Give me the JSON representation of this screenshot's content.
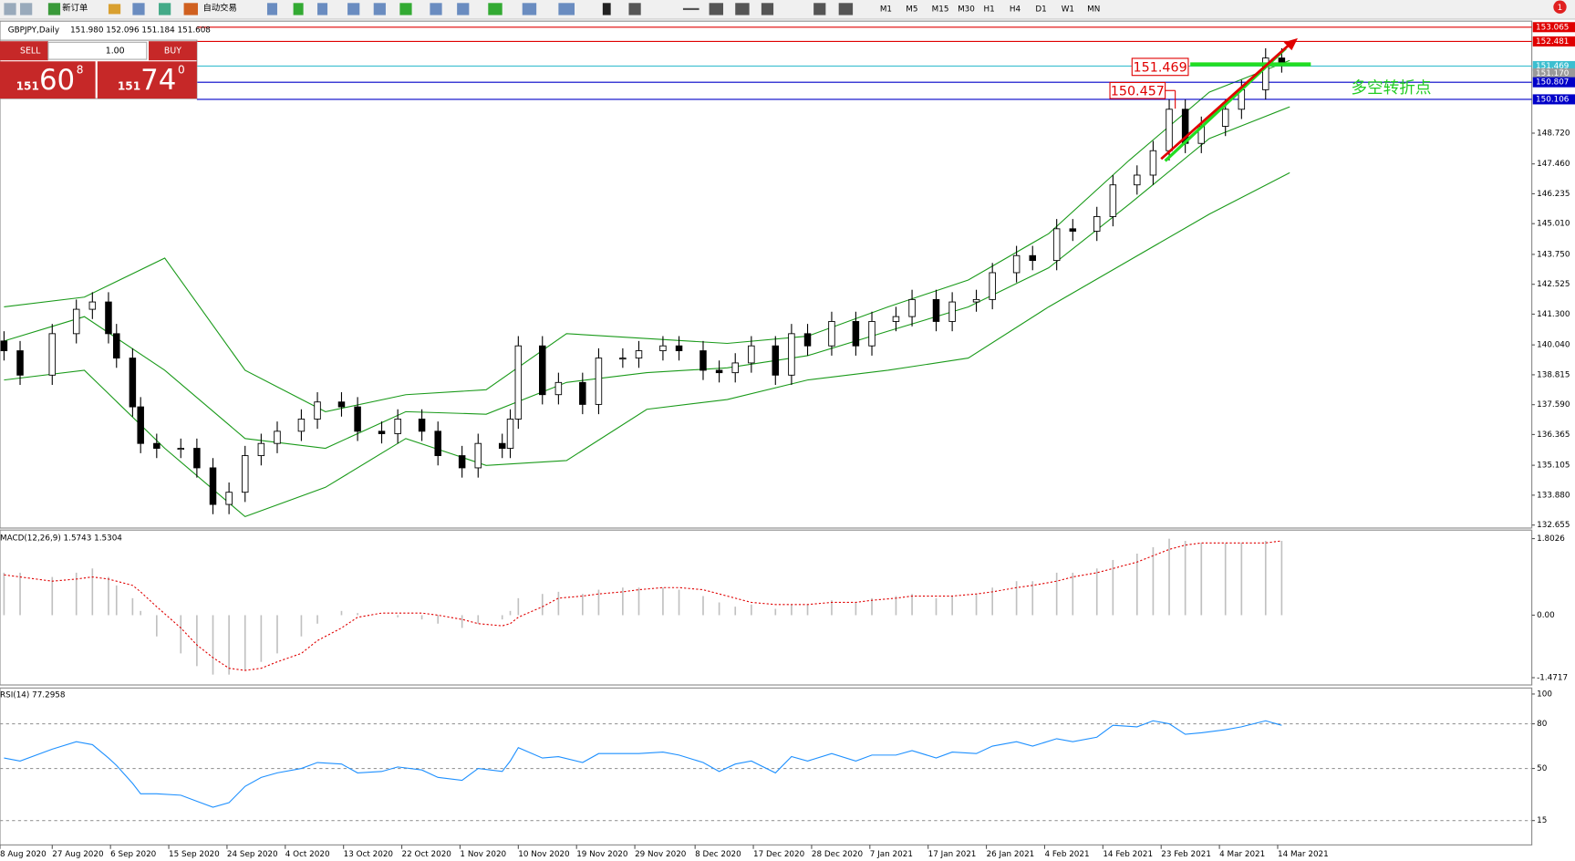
{
  "toolbar": {
    "buttons": [
      "新订单",
      "自动交易"
    ],
    "timeframes": [
      "M1",
      "M5",
      "M15",
      "M30",
      "H1",
      "H4",
      "D1",
      "W1",
      "MN"
    ],
    "badge": "1"
  },
  "trade_panel": {
    "sell": "SELL",
    "buy": "BUY",
    "lot": "1.00",
    "sell_price": {
      "prefix": "151",
      "big": "60",
      "sup": "8"
    },
    "buy_price": {
      "prefix": "151",
      "big": "74",
      "sup": "0"
    }
  },
  "chart_data": [
    {
      "type": "candlestick",
      "title": "GBPJPY,Daily",
      "ohlc_label": "151.980 152.096 151.184 151.608",
      "x": [
        0,
        2,
        6,
        9,
        11,
        13,
        14,
        16,
        17,
        19,
        22,
        24,
        26,
        28,
        30,
        32,
        34,
        37,
        39,
        42,
        44,
        47,
        49,
        52,
        54,
        57,
        59,
        62,
        63,
        64,
        67,
        69,
        72,
        74,
        77,
        79,
        82,
        84,
        87,
        89,
        91,
        93,
        96,
        98,
        100,
        103,
        106,
        108,
        111,
        113,
        116,
        118,
        121,
        123,
        126,
        128,
        131,
        133,
        136,
        138,
        141,
        143,
        145,
        147,
        149,
        152,
        154,
        157,
        159
      ],
      "open": [
        140.2,
        139.8,
        138.8,
        140.5,
        141.5,
        141.8,
        140.5,
        139.5,
        137.5,
        136,
        135.8,
        135.8,
        135,
        133.5,
        134,
        135.5,
        136,
        136.5,
        137,
        137.7,
        137.5,
        136.5,
        136.4,
        137,
        136.5,
        135.5,
        135,
        136,
        135.8,
        137,
        140,
        138,
        138.5,
        137.6,
        139.5,
        139.5,
        139.8,
        140,
        139.8,
        139,
        138.9,
        139.3,
        140,
        138.8,
        140.5,
        140,
        141,
        140,
        141,
        141.2,
        141.9,
        141,
        141.8,
        141.9,
        143,
        143.7,
        143.5,
        144.8,
        144.7,
        145.3,
        146.6,
        147,
        148,
        149.7,
        148.3,
        149,
        149.7,
        150.5,
        151.8
      ],
      "high": [
        140.6,
        140.2,
        140.9,
        141.9,
        142.2,
        142.2,
        140.9,
        139.9,
        137.9,
        136.4,
        136.2,
        136.2,
        135.4,
        134.4,
        135.9,
        136.4,
        136.9,
        137.4,
        138.1,
        138.1,
        137.9,
        136.9,
        137.4,
        137.4,
        136.9,
        135.9,
        136.4,
        136.4,
        137.4,
        140.4,
        140.4,
        138.9,
        138.9,
        139.9,
        139.9,
        140.2,
        140.4,
        140.4,
        140.2,
        139.4,
        139.7,
        140.4,
        140.4,
        140.9,
        140.9,
        141.4,
        141.4,
        141.4,
        141.6,
        142.3,
        142.3,
        142.2,
        142.3,
        143.4,
        144.1,
        144.1,
        145.2,
        145.2,
        145.7,
        147,
        147.4,
        148.4,
        150.1,
        150.1,
        149.4,
        150.1,
        150.9,
        152.2,
        152.2
      ],
      "low": [
        139.4,
        138.4,
        138.4,
        140.1,
        141.1,
        140.1,
        139.1,
        137.1,
        135.6,
        135.4,
        135.4,
        134.6,
        133.1,
        133.1,
        133.6,
        135.1,
        135.6,
        136.1,
        136.6,
        137.1,
        136.1,
        136,
        136,
        136.1,
        135.1,
        134.6,
        134.6,
        135.4,
        135.4,
        136.6,
        137.6,
        137.6,
        137.2,
        137.2,
        139.1,
        139.1,
        139.4,
        139.4,
        138.6,
        138.5,
        138.5,
        138.9,
        138.4,
        138.4,
        139.6,
        139.6,
        139.6,
        139.6,
        140.6,
        140.8,
        140.6,
        140.6,
        141.4,
        141.5,
        142.6,
        143.1,
        143.1,
        144.3,
        144.3,
        144.9,
        146.2,
        146.6,
        147.6,
        147.9,
        147.9,
        148.6,
        149.3,
        150.1,
        151.2
      ],
      "close": [
        139.8,
        138.8,
        140.5,
        141.5,
        141.8,
        140.5,
        139.5,
        137.5,
        136,
        135.8,
        135.8,
        135,
        133.5,
        134,
        135.5,
        136,
        136.5,
        137,
        137.7,
        137.5,
        136.5,
        136.4,
        137,
        136.5,
        135.5,
        135,
        136,
        135.8,
        137,
        140,
        138,
        138.5,
        137.6,
        139.5,
        139.5,
        139.8,
        140,
        139.8,
        139,
        138.9,
        139.3,
        140,
        138.8,
        140.5,
        140,
        141,
        140,
        141,
        141.2,
        141.9,
        141,
        141.8,
        141.9,
        143,
        143.7,
        143.5,
        144.8,
        144.7,
        145.3,
        146.6,
        147,
        148,
        149.7,
        148.3,
        149,
        149.7,
        150.5,
        151.8,
        151.6
      ],
      "bands": {
        "color": "#1a9a1a",
        "x": [
          0,
          10,
          20,
          30,
          40,
          50,
          60,
          70,
          80,
          90,
          100,
          110,
          120,
          130,
          140,
          150,
          160
        ],
        "upper": [
          141.6,
          142,
          143.6,
          139,
          137.3,
          138,
          138.2,
          140.5,
          140.3,
          140.1,
          140.4,
          141.6,
          142.7,
          144.6,
          147.6,
          150.4,
          151.7
        ],
        "middle": [
          140.2,
          141.2,
          139,
          136.2,
          135.8,
          137.3,
          137.2,
          138.5,
          138.9,
          139.1,
          139.6,
          140.6,
          141.6,
          143.2,
          145.8,
          148.5,
          149.8
        ],
        "lower": [
          138.6,
          139,
          135.8,
          133,
          134.2,
          136.2,
          135.1,
          135.3,
          137.4,
          137.8,
          138.6,
          139,
          139.5,
          141.6,
          143.5,
          145.4,
          147.1
        ]
      },
      "xlim": [
        -0.5,
        190.125
      ],
      "ylim": [
        132.655,
        153.065
      ],
      "xticks": [
        {
          "value": -0.5,
          "label": "8 Aug 2020"
        },
        {
          "value": 6,
          "label": "27 Aug 2020"
        },
        {
          "value": 13.25,
          "label": "6 Sep 2020"
        },
        {
          "value": 20.5,
          "label": "15 Sep 2020"
        },
        {
          "value": 27.75,
          "label": "24 Sep 2020"
        },
        {
          "value": 35,
          "label": "4 Oct 2020"
        },
        {
          "value": 42.25,
          "label": "13 Oct 2020"
        },
        {
          "value": 49.5,
          "label": "22 Oct 2020"
        },
        {
          "value": 56.75,
          "label": "1 Nov 2020"
        },
        {
          "value": 64,
          "label": "10 Nov 2020"
        },
        {
          "value": 71.25,
          "label": "19 Nov 2020"
        },
        {
          "value": 78.5,
          "label": "29 Nov 2020"
        },
        {
          "value": 86,
          "label": "8 Dec 2020"
        },
        {
          "value": 93.25,
          "label": "17 Dec 2020"
        },
        {
          "value": 100.5,
          "label": "28 Dec 2020"
        },
        {
          "value": 107.75,
          "label": "7 Jan 2021"
        },
        {
          "value": 115,
          "label": "17 Jan 2021"
        },
        {
          "value": 122.25,
          "label": "26 Jan 2021"
        },
        {
          "value": 129.5,
          "label": "4 Feb 2021"
        },
        {
          "value": 136.75,
          "label": "14 Feb 2021"
        },
        {
          "value": 144,
          "label": "23 Feb 2021"
        },
        {
          "value": 151.25,
          "label": "4 Mar 2021"
        },
        {
          "value": 158.5,
          "label": "14 Mar 2021"
        }
      ],
      "yticks": [
        {
          "value": 148.72,
          "label": "148.720"
        },
        {
          "value": 147.46,
          "label": "147.460"
        },
        {
          "value": 146.235,
          "label": "146.235"
        },
        {
          "value": 145.01,
          "label": "145.010"
        },
        {
          "value": 143.75,
          "label": "143.750"
        },
        {
          "value": 142.525,
          "label": "142.525"
        },
        {
          "value": 141.3,
          "label": "141.300"
        },
        {
          "value": 140.04,
          "label": "140.040"
        },
        {
          "value": 138.815,
          "label": "138.815"
        },
        {
          "value": 137.59,
          "label": "137.590"
        },
        {
          "value": 136.365,
          "label": "136.365"
        },
        {
          "value": 135.105,
          "label": "135.105"
        },
        {
          "value": 133.88,
          "label": "133.880"
        },
        {
          "value": 132.655,
          "label": "132.655"
        }
      ],
      "levels": [
        {
          "value": 153.065,
          "label": "153.065",
          "color": "#e00000",
          "line": true
        },
        {
          "value": 152.481,
          "label": "152.481",
          "color": "#e00000",
          "line": true
        },
        {
          "value": 151.469,
          "label": "151.469",
          "color": "#3cbfd0",
          "line": true
        },
        {
          "value": 151.17,
          "label": "151.170",
          "color": "#9a9a9a",
          "line": false
        },
        {
          "value": 150.807,
          "label": "150.807",
          "color": "#0000c8",
          "line": true
        },
        {
          "value": 150.106,
          "label": "150.106",
          "color": "#0000c8",
          "line": true
        }
      ],
      "annotations": [
        {
          "text": "151.469",
          "color": "#e00000"
        },
        {
          "text": "150.457",
          "color": "#e00000"
        },
        {
          "text": "多空转折点",
          "color": "#22cc22"
        }
      ]
    },
    {
      "type": "macd",
      "title": "MACD(12,26,9) 1.5743 1.5304",
      "x": [
        0,
        2,
        6,
        9,
        11,
        13,
        14,
        16,
        17,
        19,
        22,
        24,
        26,
        28,
        30,
        32,
        34,
        37,
        39,
        42,
        44,
        47,
        49,
        52,
        54,
        57,
        59,
        62,
        63,
        64,
        67,
        69,
        72,
        74,
        77,
        79,
        82,
        84,
        87,
        89,
        91,
        93,
        96,
        98,
        100,
        103,
        106,
        108,
        111,
        113,
        116,
        118,
        121,
        123,
        126,
        128,
        131,
        133,
        136,
        138,
        141,
        143,
        145,
        147,
        149,
        152,
        154,
        157,
        159
      ],
      "histogram": [
        1,
        1,
        0.9,
        1,
        1.1,
        0.9,
        0.7,
        0.4,
        0.1,
        -0.5,
        -0.9,
        -1.2,
        -1.4,
        -1.4,
        -1.3,
        -1.1,
        -0.9,
        -0.5,
        -0.2,
        0.1,
        0.05,
        0,
        -0.05,
        -0.1,
        -0.2,
        -0.3,
        -0.2,
        -0.1,
        0.1,
        0.4,
        0.5,
        0.55,
        0.5,
        0.6,
        0.65,
        0.65,
        0.65,
        0.6,
        0.45,
        0.3,
        0.2,
        0.25,
        0.15,
        0.25,
        0.25,
        0.35,
        0.3,
        0.4,
        0.45,
        0.5,
        0.4,
        0.45,
        0.5,
        0.65,
        0.8,
        0.8,
        1,
        1,
        1.1,
        1.3,
        1.45,
        1.6,
        1.8,
        1.75,
        1.7,
        1.7,
        1.7,
        1.75,
        1.75
      ],
      "signal": [
        0.95,
        0.9,
        0.8,
        0.85,
        0.9,
        0.85,
        0.8,
        0.7,
        0.55,
        0.2,
        -0.3,
        -0.7,
        -1,
        -1.25,
        -1.3,
        -1.25,
        -1.1,
        -0.9,
        -0.6,
        -0.3,
        -0.05,
        0.05,
        0.05,
        0.05,
        0,
        -0.1,
        -0.2,
        -0.25,
        -0.2,
        -0.05,
        0.2,
        0.4,
        0.45,
        0.5,
        0.55,
        0.6,
        0.65,
        0.65,
        0.6,
        0.5,
        0.4,
        0.3,
        0.25,
        0.25,
        0.25,
        0.3,
        0.3,
        0.35,
        0.4,
        0.45,
        0.45,
        0.45,
        0.5,
        0.55,
        0.65,
        0.7,
        0.8,
        0.9,
        1,
        1.1,
        1.25,
        1.4,
        1.55,
        1.65,
        1.7,
        1.7,
        1.7,
        1.7,
        1.75
      ],
      "histogram_color": "#c0c0c0",
      "signal_color": "#e00000",
      "xlim": [
        -0.5,
        190.125
      ],
      "ylim": [
        -1.62,
        1.98
      ],
      "yticks": [
        1.8026,
        {
          "value": 0,
          "label": "0.00"
        },
        -1.4717
      ]
    },
    {
      "type": "line",
      "title": "RSI(14) 77.2958",
      "x": [
        0,
        2,
        6,
        9,
        11,
        13,
        14,
        16,
        17,
        19,
        22,
        24,
        26,
        28,
        30,
        32,
        34,
        37,
        39,
        42,
        44,
        47,
        49,
        52,
        54,
        57,
        59,
        62,
        63,
        64,
        67,
        69,
        72,
        74,
        77,
        79,
        82,
        84,
        87,
        89,
        91,
        93,
        96,
        98,
        100,
        103,
        106,
        108,
        111,
        113,
        116,
        118,
        121,
        123,
        126,
        128,
        131,
        133,
        136,
        138,
        141,
        143,
        145,
        147,
        149,
        152,
        154,
        157,
        159
      ],
      "values": [
        57,
        55,
        63,
        68,
        66,
        57,
        52,
        40,
        33,
        33,
        32,
        28,
        24,
        27,
        38,
        44,
        47,
        50,
        54,
        53,
        47,
        48,
        51,
        49,
        44,
        42,
        50,
        48,
        55,
        64,
        57,
        58,
        54,
        60,
        60,
        60,
        61,
        59,
        54,
        48,
        53,
        55,
        47,
        58,
        55,
        60,
        55,
        59,
        59,
        62,
        57,
        61,
        60,
        65,
        68,
        65,
        70,
        68,
        71,
        79,
        78,
        82,
        80,
        73,
        74,
        76,
        78,
        82,
        79
      ],
      "color": "#1e90ff",
      "xlim": [
        -0.5,
        190.125
      ],
      "ylim": [
        0,
        100
      ],
      "yticks": [
        100,
        80,
        50,
        15
      ],
      "grid": true
    }
  ]
}
